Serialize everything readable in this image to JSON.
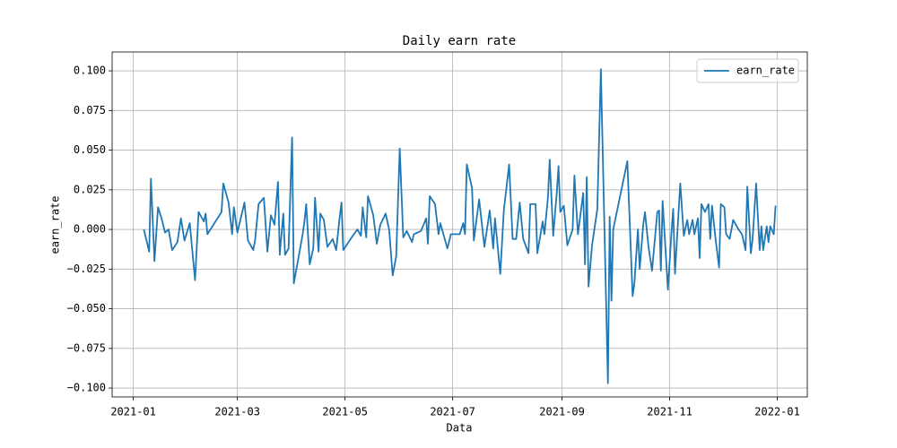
{
  "chart_data": {
    "type": "line",
    "title": "Daily earn rate",
    "xlabel": "Data",
    "ylabel": "earn_rate",
    "x": [
      "2021-01-07",
      "2021-01-10",
      "2021-01-11",
      "2021-01-13",
      "2021-01-15",
      "2021-01-17",
      "2021-01-19",
      "2021-01-21",
      "2021-01-23",
      "2021-01-26",
      "2021-01-28",
      "2021-01-30",
      "2021-02-02",
      "2021-02-05",
      "2021-02-07",
      "2021-02-10",
      "2021-02-11",
      "2021-02-12",
      "2021-02-20",
      "2021-02-21",
      "2021-02-24",
      "2021-02-26",
      "2021-02-27",
      "2021-03-01",
      "2021-03-05",
      "2021-03-07",
      "2021-03-10",
      "2021-03-11",
      "2021-03-13",
      "2021-03-16",
      "2021-03-18",
      "2021-03-20",
      "2021-03-22",
      "2021-03-24",
      "2021-03-25",
      "2021-03-27",
      "2021-03-28",
      "2021-03-30",
      "2021-04-01",
      "2021-04-02",
      "2021-04-07",
      "2021-04-08",
      "2021-04-09",
      "2021-04-11",
      "2021-04-13",
      "2021-04-14",
      "2021-04-16",
      "2021-04-17",
      "2021-04-19",
      "2021-04-21",
      "2021-04-24",
      "2021-04-26",
      "2021-04-28",
      "2021-04-29",
      "2021-04-30",
      "2021-05-06",
      "2021-05-08",
      "2021-05-10",
      "2021-05-11",
      "2021-05-13",
      "2021-05-14",
      "2021-05-17",
      "2021-05-19",
      "2021-05-21",
      "2021-05-24",
      "2021-05-26",
      "2021-05-28",
      "2021-05-30",
      "2021-06-01",
      "2021-06-03",
      "2021-06-05",
      "2021-06-08",
      "2021-06-09",
      "2021-06-13",
      "2021-06-16",
      "2021-06-17",
      "2021-06-18",
      "2021-06-21",
      "2021-06-23",
      "2021-06-24",
      "2021-06-28",
      "2021-06-30",
      "2021-07-02",
      "2021-07-05",
      "2021-07-07",
      "2021-07-08",
      "2021-07-09",
      "2021-07-12",
      "2021-07-13",
      "2021-07-16",
      "2021-07-19",
      "2021-07-22",
      "2021-07-24",
      "2021-07-25",
      "2021-07-28",
      "2021-07-30",
      "2021-08-02",
      "2021-08-04",
      "2021-08-06",
      "2021-08-08",
      "2021-08-10",
      "2021-08-13",
      "2021-08-14",
      "2021-08-17",
      "2021-08-18",
      "2021-08-21",
      "2021-08-22",
      "2021-08-24",
      "2021-08-25",
      "2021-08-27",
      "2021-08-29",
      "2021-08-30",
      "2021-08-31",
      "2021-09-02",
      "2021-09-04",
      "2021-09-07",
      "2021-09-08",
      "2021-09-10",
      "2021-09-13",
      "2021-09-14",
      "2021-09-15",
      "2021-09-16",
      "2021-09-18",
      "2021-09-21",
      "2021-09-23",
      "2021-09-27",
      "2021-09-28",
      "2021-09-29",
      "2021-09-30",
      "2021-10-08",
      "2021-10-11",
      "2021-10-12",
      "2021-10-14",
      "2021-10-15",
      "2021-10-17",
      "2021-10-18",
      "2021-10-20",
      "2021-10-22",
      "2021-10-25",
      "2021-10-26",
      "2021-10-27",
      "2021-10-28",
      "2021-10-31",
      "2021-11-02",
      "2021-11-03",
      "2021-11-04",
      "2021-11-07",
      "2021-11-09",
      "2021-11-11",
      "2021-11-12",
      "2021-11-14",
      "2021-11-15",
      "2021-11-17",
      "2021-11-18",
      "2021-11-19",
      "2021-11-21",
      "2021-11-23",
      "2021-11-24",
      "2021-11-25",
      "2021-11-27",
      "2021-11-29",
      "2021-11-30",
      "2021-12-02",
      "2021-12-03",
      "2021-12-05",
      "2021-12-07",
      "2021-12-10",
      "2021-12-12",
      "2021-12-14",
      "2021-12-15",
      "2021-12-17",
      "2021-12-18",
      "2021-12-20",
      "2021-12-22",
      "2021-12-23",
      "2021-12-24",
      "2021-12-26",
      "2021-12-27",
      "2021-12-28",
      "2021-12-30",
      "2021-12-31"
    ],
    "series": [
      {
        "name": "earn_rate",
        "color": "#1f77b4",
        "values": [
          0.0,
          -0.014,
          0.032,
          -0.02,
          0.014,
          0.007,
          -0.002,
          0.0,
          -0.013,
          -0.008,
          0.007,
          -0.007,
          0.004,
          -0.032,
          0.011,
          0.005,
          0.01,
          -0.003,
          0.011,
          0.029,
          0.017,
          -0.003,
          0.014,
          -0.002,
          0.017,
          -0.007,
          -0.013,
          -0.007,
          0.016,
          0.02,
          -0.014,
          0.009,
          0.003,
          0.03,
          -0.016,
          0.01,
          -0.016,
          -0.012,
          0.058,
          -0.034,
          -0.003,
          0.005,
          0.016,
          -0.022,
          -0.012,
          0.02,
          -0.014,
          0.01,
          0.006,
          -0.011,
          -0.006,
          -0.013,
          0.008,
          0.017,
          -0.013,
          -0.003,
          0.0,
          -0.004,
          0.014,
          -0.005,
          0.021,
          0.009,
          -0.009,
          0.003,
          0.01,
          0.0,
          -0.029,
          -0.017,
          0.051,
          -0.005,
          -0.001,
          -0.008,
          -0.003,
          -0.001,
          0.007,
          -0.009,
          0.021,
          0.016,
          -0.003,
          0.004,
          -0.012,
          -0.003,
          -0.003,
          -0.003,
          0.004,
          -0.003,
          0.041,
          0.026,
          -0.007,
          0.019,
          -0.011,
          0.012,
          -0.012,
          0.007,
          -0.028,
          0.012,
          0.041,
          -0.006,
          -0.006,
          0.017,
          -0.006,
          -0.015,
          0.016,
          0.016,
          -0.015,
          0.005,
          -0.003,
          0.02,
          0.044,
          -0.004,
          0.023,
          0.04,
          0.011,
          0.015,
          -0.01,
          0.0,
          0.034,
          -0.003,
          0.023,
          -0.022,
          0.033,
          -0.036,
          -0.01,
          0.013,
          0.101,
          -0.097,
          0.008,
          -0.045,
          0.0,
          0.043,
          -0.042,
          -0.034,
          0.0,
          -0.025,
          0.003,
          0.011,
          -0.011,
          -0.026,
          0.011,
          0.012,
          -0.026,
          0.018,
          -0.038,
          -0.002,
          0.013,
          -0.028,
          0.029,
          -0.004,
          0.006,
          -0.003,
          0.006,
          -0.003,
          0.007,
          -0.018,
          0.016,
          0.011,
          0.016,
          -0.006,
          0.015,
          -0.006,
          -0.024,
          0.016,
          0.014,
          -0.003,
          -0.006,
          0.006,
          0.0,
          -0.003,
          -0.013,
          0.027,
          -0.015,
          -0.006,
          0.029,
          -0.013,
          0.002,
          -0.013,
          0.002,
          -0.008,
          0.002,
          -0.003,
          0.015
        ]
      }
    ],
    "xlim": [
      "2020-12-20",
      "2022-01-18"
    ],
    "xticks": [
      "2021-01",
      "2021-03",
      "2021-05",
      "2021-07",
      "2021-09",
      "2021-11",
      "2022-01"
    ],
    "ylim": [
      -0.1056,
      0.1119
    ],
    "yticks": [
      {
        "value": -0.1,
        "label": "−0.100"
      },
      {
        "value": -0.075,
        "label": "−0.075"
      },
      {
        "value": -0.05,
        "label": "−0.050"
      },
      {
        "value": -0.025,
        "label": "−0.025"
      },
      {
        "value": 0,
        "label": "0.000"
      },
      {
        "value": 0.025,
        "label": "0.025"
      },
      {
        "value": 0.05,
        "label": "0.050"
      },
      {
        "value": 0.075,
        "label": "0.075"
      },
      {
        "value": 0.1,
        "label": "0.100"
      }
    ],
    "grid": true,
    "legend": "upper right"
  }
}
